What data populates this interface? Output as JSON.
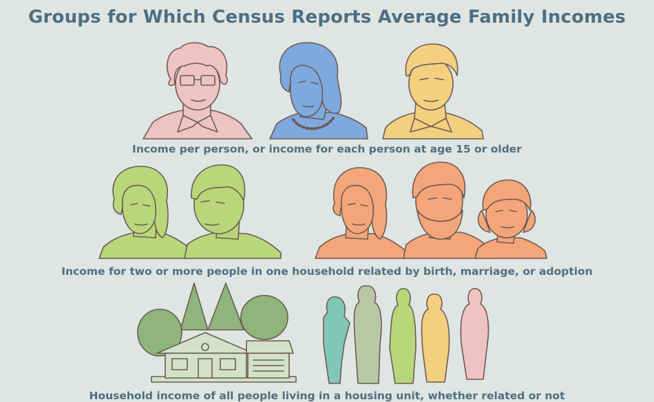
{
  "title": "Groups for Which Census Reports Average Family Incomes",
  "sections": [
    {
      "caption": "Income per person, or income for each person at age 15 or older",
      "icon": "individual-people-portraits"
    },
    {
      "caption": "Income for two or more people in one household related by birth, marriage, or adoption",
      "icon": "family-portraits"
    },
    {
      "caption": "Household income of all people living in a housing unit, whether related or not",
      "icon": "house-and-people-silhouettes"
    }
  ],
  "colors": {
    "background": "#dfe5e2",
    "text": "#4e6e82",
    "outline": "#6b5a50",
    "pink": "#eec3c3",
    "blue": "#7fa8de",
    "yellow": "#f3cf80",
    "green": "#b9d77a",
    "orange": "#f4a57a",
    "house": "#d2e2c9",
    "tree": "#8fb57c"
  }
}
